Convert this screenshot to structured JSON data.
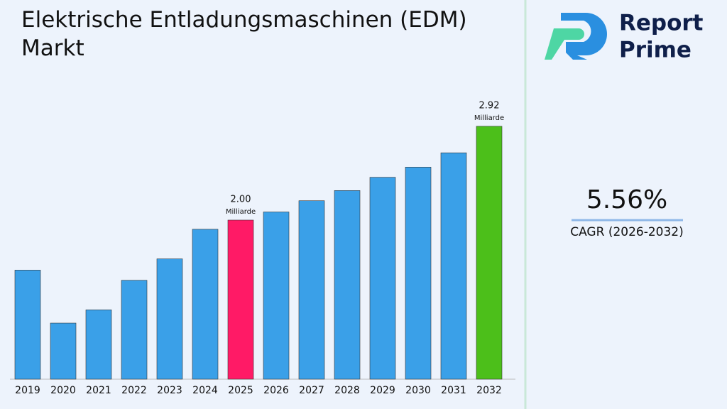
{
  "chart_data": {
    "type": "bar",
    "title": "Elektrische Entladungsmaschinen (EDM) Markt",
    "categories": [
      "2019",
      "2020",
      "2021",
      "2022",
      "2023",
      "2024",
      "2025",
      "2026",
      "2027",
      "2028",
      "2029",
      "2030",
      "2031",
      "2032"
    ],
    "values": [
      1.51,
      0.99,
      1.12,
      1.41,
      1.62,
      1.91,
      2.0,
      2.08,
      2.19,
      2.29,
      2.42,
      2.52,
      2.66,
      2.92
    ],
    "value_labels": [
      null,
      null,
      null,
      null,
      null,
      null,
      "2.00",
      null,
      null,
      null,
      null,
      null,
      null,
      "2.92"
    ],
    "value_unit": "Milliarde",
    "colors": [
      "#3aa0e8",
      "#3aa0e8",
      "#3aa0e8",
      "#3aa0e8",
      "#3aa0e8",
      "#3aa0e8",
      "#ff1a66",
      "#3aa0e8",
      "#3aa0e8",
      "#3aa0e8",
      "#3aa0e8",
      "#3aa0e8",
      "#3aa0e8",
      "#4cbf1a"
    ],
    "ylim": [
      0.44,
      3.1
    ]
  },
  "side_panel": {
    "brand_line1": "Report",
    "brand_line2": "Prime",
    "cagr_value": "5.56%",
    "cagr_label": "CAGR (2026-2032)"
  }
}
